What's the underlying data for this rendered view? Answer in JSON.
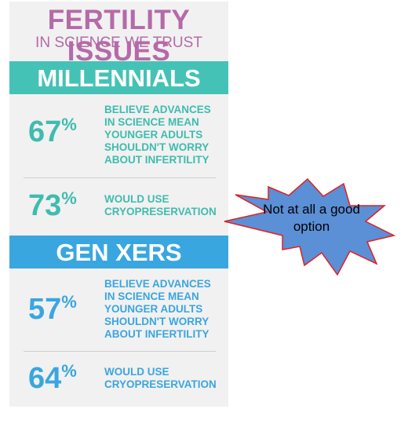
{
  "infographic": {
    "title": "FERTILITY ISSUES",
    "subtitle": "IN SCIENCE WE TRUST",
    "title_color": "#b56aa8",
    "sections": [
      {
        "heading": "MILLENNIALS",
        "color": "#45c2b6",
        "stats": [
          {
            "value": "67",
            "unit": "%",
            "text": "BELIEVE ADVANCES\nIN SCIENCE MEAN\nYOUNGER ADULTS\nSHOULDN'T WORRY\nABOUT INFERTILITY"
          },
          {
            "value": "73",
            "unit": "%",
            "text": "WOULD USE\nCRYOPRESERVATION"
          }
        ]
      },
      {
        "heading": "GEN XERS",
        "color": "#3aa6df",
        "stats": [
          {
            "value": "57",
            "unit": "%",
            "text": "BELIEVE ADVANCES\nIN SCIENCE MEAN\nYOUNGER ADULTS\nSHOULDN'T WORRY\nABOUT INFERTILITY"
          },
          {
            "value": "64",
            "unit": "%",
            "text": "WOULD USE\nCRYOPRESERVATION"
          }
        ]
      }
    ]
  },
  "callout": {
    "text": "Not at all a good option",
    "fill": "#5b8fd6",
    "stroke": "#e02020"
  }
}
